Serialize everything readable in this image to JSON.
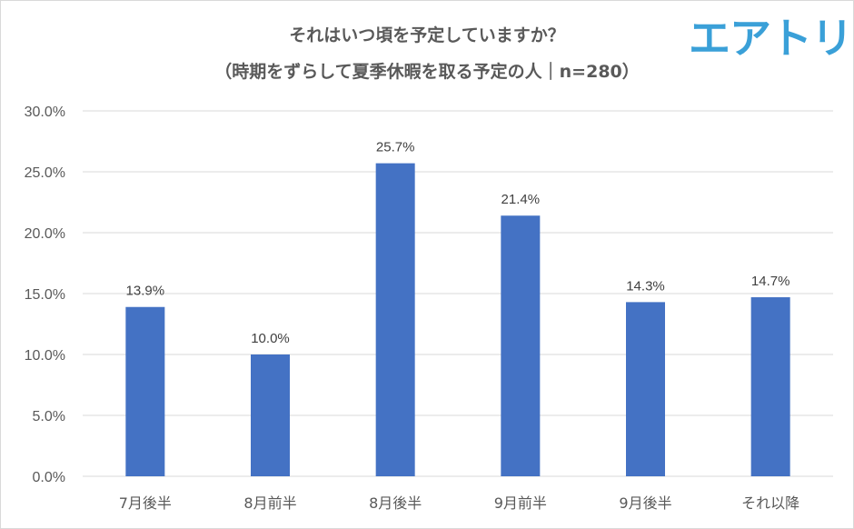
{
  "chart_data": {
    "type": "bar",
    "title": "それはいつ頃を予定していますか？",
    "subtitle": "（時期をずらして夏季休暇を取る予定の人｜n=280）",
    "categories": [
      "7月後半",
      "8月前半",
      "8月後半",
      "9月前半",
      "9月後半",
      "それ以降"
    ],
    "values": [
      13.9,
      10.0,
      25.7,
      21.4,
      14.3,
      14.7
    ],
    "data_labels": [
      "13.9%",
      "10.0%",
      "25.7%",
      "21.4%",
      "14.3%",
      "14.7%"
    ],
    "y_ticks": [
      0,
      5,
      10,
      15,
      20,
      25,
      30
    ],
    "y_tick_labels": [
      "0.0%",
      "5.0%",
      "10.0%",
      "15.0%",
      "20.0%",
      "25.0%",
      "30.0%"
    ],
    "ylim": [
      0,
      30
    ],
    "xlabel": "",
    "ylabel": "",
    "grid": true,
    "bar_color": "#4472c4"
  },
  "brand": {
    "logo_text": "エアトリ",
    "logo_color": "#3aa0d8"
  }
}
